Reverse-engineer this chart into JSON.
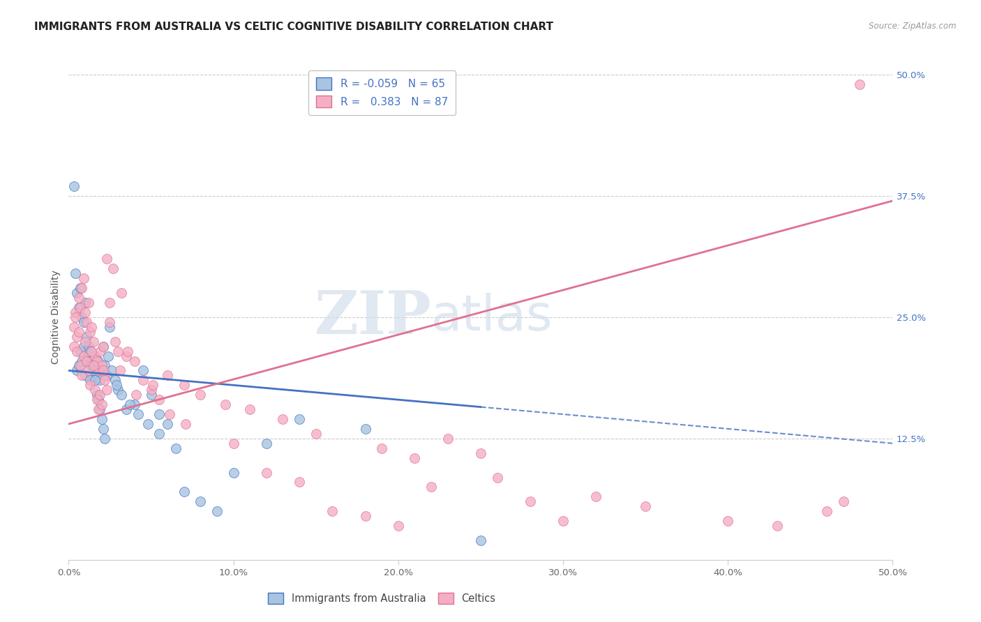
{
  "title": "IMMIGRANTS FROM AUSTRALIA VS CELTIC COGNITIVE DISABILITY CORRELATION CHART",
  "source": "Source: ZipAtlas.com",
  "ylabel": "Cognitive Disability",
  "R1": -0.059,
  "N1": 65,
  "R2": 0.383,
  "N2": 87,
  "color1": "#a8c4e0",
  "color2": "#f4afc4",
  "line_color1": "#4472c4",
  "line_color2": "#e07090",
  "watermark_zip": "ZIP",
  "watermark_atlas": "atlas",
  "title_fontsize": 11,
  "axis_label_fontsize": 10,
  "tick_fontsize": 9.5,
  "legend_label1": "Immigrants from Australia",
  "legend_label2": "Celtics",
  "blue_x": [
    0.5,
    0.6,
    0.7,
    0.8,
    0.9,
    1.0,
    1.1,
    1.2,
    1.3,
    1.4,
    1.5,
    1.6,
    1.7,
    1.8,
    1.9,
    2.0,
    2.1,
    2.2,
    2.5,
    2.8,
    3.0,
    3.5,
    4.0,
    4.5,
    5.0,
    5.5,
    6.0,
    7.0,
    8.0,
    9.0,
    10.0,
    12.0,
    14.0,
    18.0,
    25.0,
    0.3,
    0.4,
    0.5,
    0.6,
    0.7,
    0.8,
    0.9,
    1.0,
    1.1,
    1.2,
    1.3,
    1.4,
    1.5,
    1.6,
    1.7,
    1.8,
    1.9,
    2.0,
    2.1,
    2.2,
    2.3,
    2.4,
    2.6,
    2.9,
    3.2,
    3.7,
    4.2,
    4.8,
    5.5,
    6.5
  ],
  "blue_y": [
    19.5,
    20.0,
    21.5,
    20.5,
    22.0,
    19.0,
    20.5,
    21.0,
    18.5,
    20.0,
    19.5,
    21.0,
    19.0,
    20.5,
    18.5,
    19.5,
    22.0,
    20.0,
    24.0,
    18.5,
    17.5,
    15.5,
    16.0,
    19.5,
    17.0,
    15.0,
    14.0,
    7.0,
    6.0,
    5.0,
    9.0,
    12.0,
    14.5,
    13.5,
    2.0,
    38.5,
    29.5,
    27.5,
    26.0,
    28.0,
    25.0,
    24.5,
    26.5,
    23.0,
    22.0,
    21.5,
    20.0,
    19.5,
    18.5,
    17.0,
    16.5,
    15.5,
    14.5,
    13.5,
    12.5,
    19.0,
    21.0,
    19.5,
    18.0,
    17.0,
    16.0,
    15.0,
    14.0,
    13.0,
    11.5
  ],
  "pink_x": [
    0.3,
    0.4,
    0.5,
    0.6,
    0.7,
    0.8,
    0.9,
    1.0,
    1.1,
    1.2,
    1.3,
    1.4,
    1.5,
    1.6,
    1.7,
    1.8,
    1.9,
    2.0,
    2.1,
    2.2,
    2.3,
    2.5,
    2.7,
    3.0,
    3.2,
    3.5,
    4.0,
    4.5,
    5.0,
    5.5,
    6.0,
    7.0,
    8.0,
    10.0,
    12.0,
    14.0,
    16.0,
    18.0,
    20.0,
    22.0,
    25.0,
    28.0,
    30.0,
    48.0,
    0.3,
    0.4,
    0.5,
    0.6,
    0.7,
    0.8,
    0.9,
    1.0,
    1.1,
    1.2,
    1.3,
    1.4,
    1.5,
    1.6,
    1.7,
    1.8,
    1.9,
    2.0,
    2.1,
    2.2,
    2.3,
    2.5,
    2.8,
    3.1,
    3.6,
    4.1,
    5.1,
    6.1,
    7.1,
    9.5,
    11.0,
    13.0,
    15.0,
    19.0,
    21.0,
    23.0,
    26.0,
    32.0,
    35.0,
    40.0,
    43.0,
    46.0,
    47.0
  ],
  "pink_y": [
    24.0,
    25.5,
    23.0,
    27.0,
    26.0,
    28.0,
    29.0,
    25.5,
    24.5,
    26.5,
    23.5,
    24.0,
    22.5,
    21.0,
    20.5,
    19.5,
    21.5,
    20.0,
    22.0,
    19.0,
    31.0,
    26.5,
    30.0,
    21.5,
    27.5,
    21.0,
    20.5,
    18.5,
    17.5,
    16.5,
    19.0,
    18.0,
    17.0,
    12.0,
    9.0,
    8.0,
    5.0,
    4.5,
    3.5,
    7.5,
    11.0,
    6.0,
    4.0,
    49.0,
    22.0,
    25.0,
    21.5,
    23.5,
    20.0,
    19.0,
    21.0,
    22.5,
    20.5,
    19.5,
    18.0,
    21.5,
    20.0,
    17.5,
    16.5,
    15.5,
    17.0,
    16.0,
    19.5,
    18.5,
    17.5,
    24.5,
    22.5,
    19.5,
    21.5,
    17.0,
    18.0,
    15.0,
    14.0,
    16.0,
    15.5,
    14.5,
    13.0,
    11.5,
    10.5,
    12.5,
    8.5,
    6.5,
    5.5,
    4.0,
    3.5,
    5.0,
    6.0
  ]
}
